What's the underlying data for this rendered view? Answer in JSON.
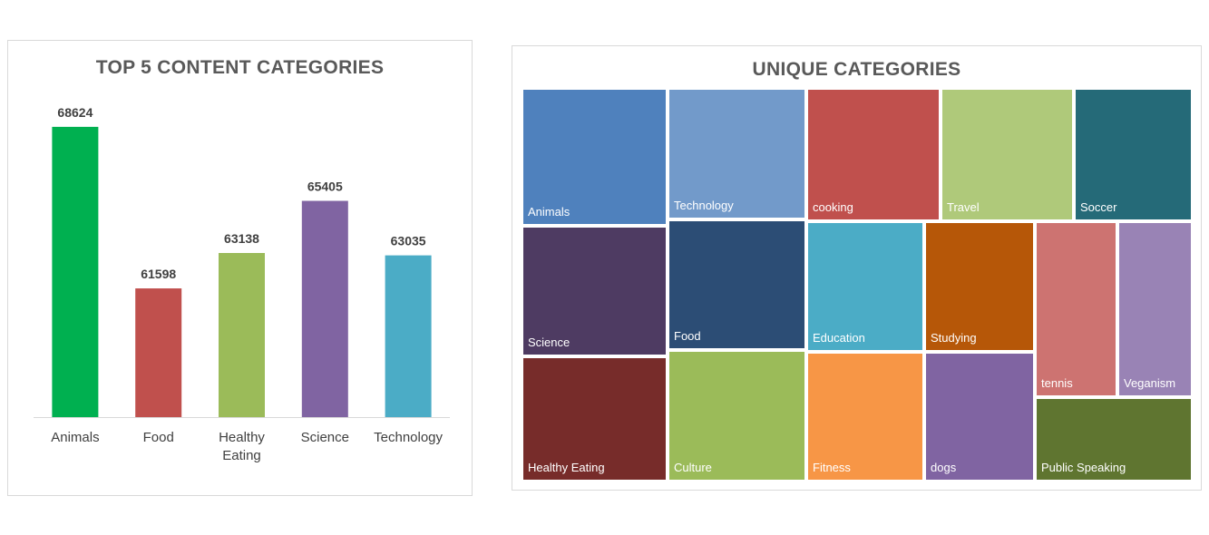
{
  "chart_data": [
    {
      "type": "bar",
      "title": "TOP 5 CONTENT CATEGORIES",
      "categories": [
        "Animals",
        "Food",
        "Healthy Eating",
        "Science",
        "Technology"
      ],
      "category_lines": [
        [
          "Animals"
        ],
        [
          "Food"
        ],
        [
          "Healthy",
          "Eating"
        ],
        [
          "Science"
        ],
        [
          "Technology"
        ]
      ],
      "values": [
        68624,
        61598,
        63138,
        65405,
        63035
      ],
      "colors": [
        "#00B050",
        "#C0504D",
        "#9BBB59",
        "#8064A2",
        "#4BACC6"
      ],
      "value_labels": true,
      "ylim": [
        56000,
        70000
      ],
      "legend": "none",
      "grid": false
    },
    {
      "type": "treemap",
      "title": "UNIQUE CATEGORIES",
      "items": [
        {
          "name": "Animals",
          "color": "#4F81BD"
        },
        {
          "name": "Technology",
          "color": "#729ACA"
        },
        {
          "name": "cooking",
          "color": "#C0504D"
        },
        {
          "name": "Travel",
          "color": "#AFC97A"
        },
        {
          "name": "Soccer",
          "color": "#256A78"
        },
        {
          "name": "Science",
          "color": "#4E3B62"
        },
        {
          "name": "Food",
          "color": "#2C4D75"
        },
        {
          "name": "Education",
          "color": "#4BACC6"
        },
        {
          "name": "Studying",
          "color": "#B65708"
        },
        {
          "name": "tennis",
          "color": "#CD7371"
        },
        {
          "name": "Veganism",
          "color": "#9983B5"
        },
        {
          "name": "Healthy Eating",
          "color": "#772C2A"
        },
        {
          "name": "Culture",
          "color": "#9BBB59"
        },
        {
          "name": "Fitness",
          "color": "#F79646"
        },
        {
          "name": "dogs",
          "color": "#8064A2"
        },
        {
          "name": "Public Speaking",
          "color": "#5F7530"
        }
      ],
      "legend": "none"
    }
  ]
}
